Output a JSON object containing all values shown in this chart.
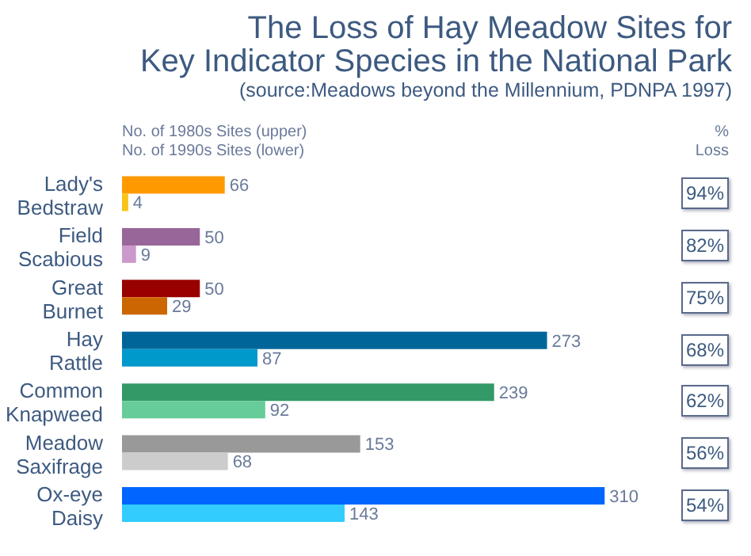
{
  "chart_data": {
    "type": "bar",
    "orientation": "horizontal",
    "title": "The Loss of Hay Meadow Sites for\nKey Indicator Species in the National Park",
    "subtitle": "(source:Meadows beyond the Millennium, PDNPA 1997)",
    "categories": [
      "Lady's Bedstraw",
      "Field Scabious",
      "Great Burnet",
      "Hay Rattle",
      "Common Knapweed",
      "Meadow Saxifrage",
      "Ox-eye Daisy"
    ],
    "series": [
      {
        "colors": [
          "#ff9900",
          "#996699",
          "#990000",
          "#006699",
          "#339966",
          "#999999",
          "#0066ff"
        ],
        "values": [
          66,
          50,
          50,
          273,
          239,
          153,
          310
        ]
      },
      {
        "colors": [
          "#f8c419",
          "#cc99cc",
          "#cc6600",
          "#0099cc",
          "#66cc99",
          "#cccccc",
          "#33ccff"
        ],
        "values": [
          4,
          9,
          29,
          87,
          92,
          68,
          143
        ]
      }
    ],
    "data_labels": true,
    "annotations": [
      "No. of 1980s Sites (upper)",
      "No. of 1990s Sites (lower)",
      "%",
      "Loss",
      "94%",
      "82%",
      "75%",
      "68%",
      "62%",
      "56%",
      "54%"
    ]
  }
}
